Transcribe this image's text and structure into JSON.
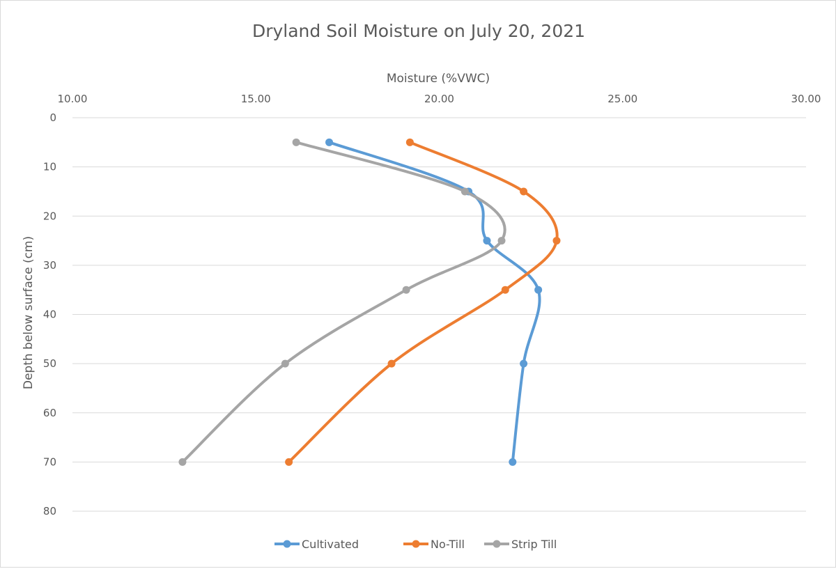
{
  "chart_data": {
    "type": "scatter",
    "title": "Dryland Soil Moisture on July 20, 2021",
    "xlabel": "Moisture (%VWC)",
    "ylabel": "Depth below surface (cm)",
    "xlim": [
      10,
      30
    ],
    "ylim": [
      0,
      80
    ],
    "x_ticks": [
      "10.00",
      "15.00",
      "20.00",
      "25.00",
      "30.00"
    ],
    "y_ticks": [
      "0",
      "10",
      "20",
      "30",
      "40",
      "50",
      "60",
      "70",
      "80"
    ],
    "x_axis_position": "top",
    "y_axis_reversed": true,
    "smoothed_lines": true,
    "grid": true,
    "legend_position": "bottom",
    "series": [
      {
        "name": "Cultivated",
        "color": "#5b9bd5",
        "points": [
          [
            17.0,
            5
          ],
          [
            20.8,
            15
          ],
          [
            21.3,
            25
          ],
          [
            22.7,
            35
          ],
          [
            22.3,
            50
          ],
          [
            22.0,
            70
          ]
        ]
      },
      {
        "name": "No-Till",
        "color": "#ed7d31",
        "points": [
          [
            19.2,
            5
          ],
          [
            22.3,
            15
          ],
          [
            23.2,
            25
          ],
          [
            21.8,
            35
          ],
          [
            18.7,
            50
          ],
          [
            15.9,
            70
          ]
        ]
      },
      {
        "name": "Strip Till",
        "color": "#a5a5a5",
        "points": [
          [
            16.1,
            5
          ],
          [
            20.7,
            15
          ],
          [
            21.7,
            25
          ],
          [
            19.1,
            35
          ],
          [
            15.8,
            50
          ],
          [
            13.0,
            70
          ]
        ]
      }
    ]
  }
}
